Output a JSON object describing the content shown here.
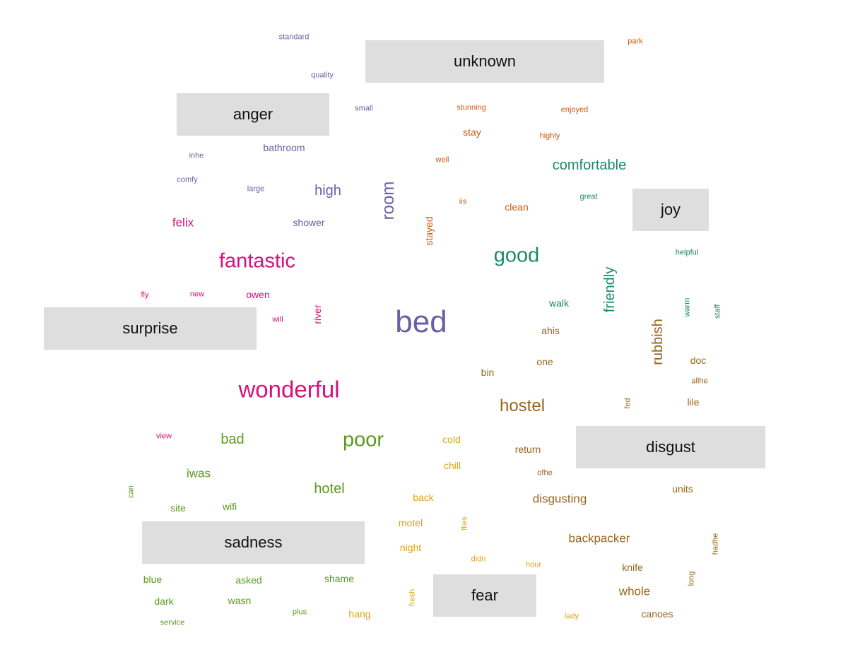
{
  "palette": {
    "anger": "#6a5fa8",
    "disgust": "#96661b",
    "fear": "#dda416",
    "joy": "#1a8a6a",
    "sadness": "#5a9a1e",
    "surprise": "#d6107d",
    "unknown": "#cf5a0e"
  },
  "emotions": [
    {
      "key": "unknown",
      "label": "unknown"
    },
    {
      "key": "anger",
      "label": "anger"
    },
    {
      "key": "joy",
      "label": "joy"
    },
    {
      "key": "surprise",
      "label": "surprise"
    },
    {
      "key": "disgust",
      "label": "disgust"
    },
    {
      "key": "sadness",
      "label": "sadness"
    },
    {
      "key": "fear",
      "label": "fear"
    }
  ],
  "words": [
    {
      "text": "standard",
      "emotion": "anger",
      "weight": 1,
      "vertical": false
    },
    {
      "text": "quality",
      "emotion": "anger",
      "weight": 1,
      "vertical": false
    },
    {
      "text": "small",
      "emotion": "anger",
      "weight": 1,
      "vertical": false
    },
    {
      "text": "bathroom",
      "emotion": "anger",
      "weight": 2,
      "vertical": false
    },
    {
      "text": "inhe",
      "emotion": "anger",
      "weight": 1,
      "vertical": false
    },
    {
      "text": "comfy",
      "emotion": "anger",
      "weight": 1,
      "vertical": false
    },
    {
      "text": "large",
      "emotion": "anger",
      "weight": 1,
      "vertical": false
    },
    {
      "text": "high",
      "emotion": "anger",
      "weight": 4,
      "vertical": false
    },
    {
      "text": "room",
      "emotion": "anger",
      "weight": 5,
      "vertical": true
    },
    {
      "text": "shower",
      "emotion": "anger",
      "weight": 2,
      "vertical": false
    },
    {
      "text": "bed",
      "emotion": "anger",
      "weight": 10,
      "vertical": false
    },
    {
      "text": "park",
      "emotion": "unknown",
      "weight": 1,
      "vertical": false
    },
    {
      "text": "stunning",
      "emotion": "unknown",
      "weight": 1,
      "vertical": false
    },
    {
      "text": "enjoyed",
      "emotion": "unknown",
      "weight": 1,
      "vertical": false
    },
    {
      "text": "stay",
      "emotion": "unknown",
      "weight": 2,
      "vertical": false
    },
    {
      "text": "highly",
      "emotion": "unknown",
      "weight": 1,
      "vertical": false
    },
    {
      "text": "well",
      "emotion": "unknown",
      "weight": 1,
      "vertical": false
    },
    {
      "text": "iis",
      "emotion": "unknown",
      "weight": 1,
      "vertical": false
    },
    {
      "text": "clean",
      "emotion": "unknown",
      "weight": 2,
      "vertical": false
    },
    {
      "text": "stayed",
      "emotion": "unknown",
      "weight": 2,
      "vertical": true
    },
    {
      "text": "comfortable",
      "emotion": "joy",
      "weight": 4,
      "vertical": false
    },
    {
      "text": "great",
      "emotion": "joy",
      "weight": 1,
      "vertical": false
    },
    {
      "text": "good",
      "emotion": "joy",
      "weight": 6,
      "vertical": false
    },
    {
      "text": "helpful",
      "emotion": "joy",
      "weight": 1,
      "vertical": false
    },
    {
      "text": "friendly",
      "emotion": "joy",
      "weight": 4,
      "vertical": true
    },
    {
      "text": "walk",
      "emotion": "joy",
      "weight": 2,
      "vertical": false
    },
    {
      "text": "warm",
      "emotion": "joy",
      "weight": 1,
      "vertical": true
    },
    {
      "text": "staff",
      "emotion": "joy",
      "weight": 1,
      "vertical": true
    },
    {
      "text": "felix",
      "emotion": "surprise",
      "weight": 3,
      "vertical": false
    },
    {
      "text": "fantastic",
      "emotion": "surprise",
      "weight": 6,
      "vertical": false
    },
    {
      "text": "fly",
      "emotion": "surprise",
      "weight": 1,
      "vertical": false
    },
    {
      "text": "new",
      "emotion": "surprise",
      "weight": 1,
      "vertical": false
    },
    {
      "text": "owen",
      "emotion": "surprise",
      "weight": 2,
      "vertical": false
    },
    {
      "text": "will",
      "emotion": "surprise",
      "weight": 1,
      "vertical": false
    },
    {
      "text": "river",
      "emotion": "surprise",
      "weight": 2,
      "vertical": true
    },
    {
      "text": "wonderful",
      "emotion": "surprise",
      "weight": 8,
      "vertical": false
    },
    {
      "text": "view",
      "emotion": "surprise",
      "weight": 1,
      "vertical": false
    },
    {
      "text": "ahis",
      "emotion": "disgust",
      "weight": 2,
      "vertical": false
    },
    {
      "text": "rubbish",
      "emotion": "disgust",
      "weight": 4,
      "vertical": true
    },
    {
      "text": "doc",
      "emotion": "disgust",
      "weight": 2,
      "vertical": false
    },
    {
      "text": "one",
      "emotion": "disgust",
      "weight": 2,
      "vertical": false
    },
    {
      "text": "bin",
      "emotion": "disgust",
      "weight": 2,
      "vertical": false
    },
    {
      "text": "allhe",
      "emotion": "disgust",
      "weight": 1,
      "vertical": false
    },
    {
      "text": "hostel",
      "emotion": "disgust",
      "weight": 5,
      "vertical": false
    },
    {
      "text": "fed",
      "emotion": "disgust",
      "weight": 1,
      "vertical": true
    },
    {
      "text": "lile",
      "emotion": "disgust",
      "weight": 2,
      "vertical": false
    },
    {
      "text": "return",
      "emotion": "disgust",
      "weight": 2,
      "vertical": false
    },
    {
      "text": "ofhe",
      "emotion": "disgust",
      "weight": 1,
      "vertical": false
    },
    {
      "text": "units",
      "emotion": "disgust",
      "weight": 2,
      "vertical": false
    },
    {
      "text": "disgusting",
      "emotion": "disgust",
      "weight": 3,
      "vertical": false
    },
    {
      "text": "backpacker",
      "emotion": "disgust",
      "weight": 3,
      "vertical": false
    },
    {
      "text": "hadhe",
      "emotion": "disgust",
      "weight": 1,
      "vertical": true
    },
    {
      "text": "knife",
      "emotion": "disgust",
      "weight": 2,
      "vertical": false
    },
    {
      "text": "long",
      "emotion": "disgust",
      "weight": 1,
      "vertical": true
    },
    {
      "text": "whole",
      "emotion": "disgust",
      "weight": 3,
      "vertical": false
    },
    {
      "text": "canoes",
      "emotion": "disgust",
      "weight": 2,
      "vertical": false
    },
    {
      "text": "bad",
      "emotion": "sadness",
      "weight": 4,
      "vertical": false
    },
    {
      "text": "poor",
      "emotion": "sadness",
      "weight": 6,
      "vertical": false
    },
    {
      "text": "iwas",
      "emotion": "sadness",
      "weight": 3,
      "vertical": false
    },
    {
      "text": "hotel",
      "emotion": "sadness",
      "weight": 4,
      "vertical": false
    },
    {
      "text": "can",
      "emotion": "sadness",
      "weight": 1,
      "vertical": true
    },
    {
      "text": "site",
      "emotion": "sadness",
      "weight": 2,
      "vertical": false
    },
    {
      "text": "wifi",
      "emotion": "sadness",
      "weight": 2,
      "vertical": false
    },
    {
      "text": "blue",
      "emotion": "sadness",
      "weight": 2,
      "vertical": false
    },
    {
      "text": "asked",
      "emotion": "sadness",
      "weight": 2,
      "vertical": false
    },
    {
      "text": "shame",
      "emotion": "sadness",
      "weight": 2,
      "vertical": false
    },
    {
      "text": "dark",
      "emotion": "sadness",
      "weight": 2,
      "vertical": false
    },
    {
      "text": "wasn",
      "emotion": "sadness",
      "weight": 2,
      "vertical": false
    },
    {
      "text": "plus",
      "emotion": "sadness",
      "weight": 1,
      "vertical": false
    },
    {
      "text": "service",
      "emotion": "sadness",
      "weight": 1,
      "vertical": false
    },
    {
      "text": "cold",
      "emotion": "fear",
      "weight": 2,
      "vertical": false
    },
    {
      "text": "chill",
      "emotion": "fear",
      "weight": 2,
      "vertical": false
    },
    {
      "text": "back",
      "emotion": "fear",
      "weight": 2,
      "vertical": false
    },
    {
      "text": "motel",
      "emotion": "fear",
      "weight": 2,
      "vertical": false
    },
    {
      "text": "flies",
      "emotion": "fear",
      "weight": 1,
      "vertical": true
    },
    {
      "text": "night",
      "emotion": "fear",
      "weight": 2,
      "vertical": false
    },
    {
      "text": "didn",
      "emotion": "fear",
      "weight": 1,
      "vertical": false
    },
    {
      "text": "hour",
      "emotion": "fear",
      "weight": 1,
      "vertical": false
    },
    {
      "text": "fresh",
      "emotion": "fear",
      "weight": 1,
      "vertical": true
    },
    {
      "text": "hang",
      "emotion": "fear",
      "weight": 2,
      "vertical": false
    },
    {
      "text": "lady",
      "emotion": "fear",
      "weight": 1,
      "vertical": false
    }
  ]
}
